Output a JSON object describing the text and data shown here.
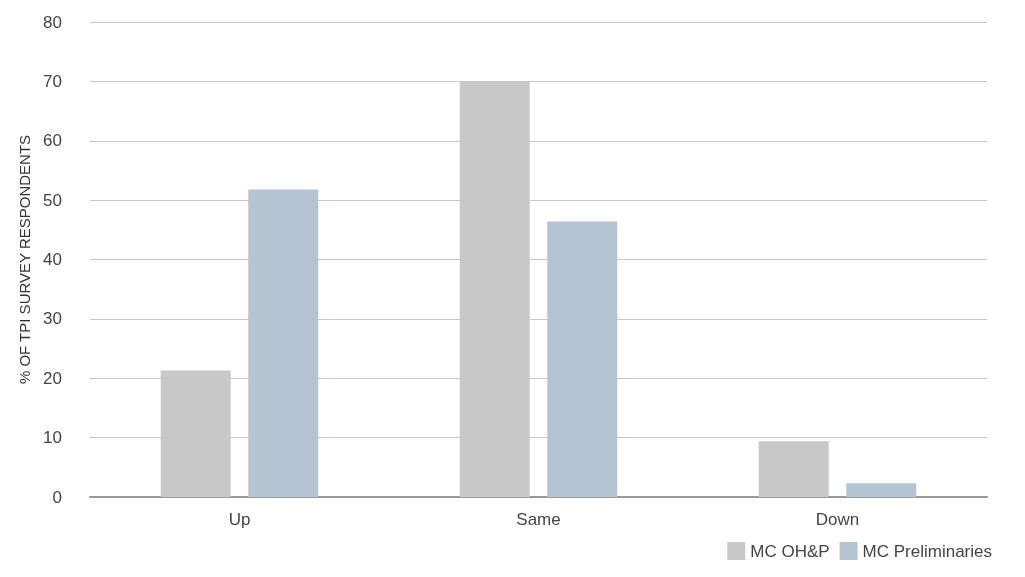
{
  "chart_data": {
    "type": "bar",
    "ylabel": "% OF TPI SURVEY RESPONDENTS",
    "categories": [
      "Up",
      "Same",
      "Down"
    ],
    "series": [
      {
        "name": "MC OH&P",
        "color": "#c8c8c8",
        "values": [
          21.3,
          69.9,
          9.4
        ]
      },
      {
        "name": "MC Preliminaries",
        "color": "#b4c4d3",
        "values": [
          51.8,
          46.4,
          2.3
        ]
      }
    ],
    "ylim": [
      0,
      80
    ],
    "yticks": [
      0,
      10,
      20,
      30,
      40,
      50,
      60,
      70,
      80
    ],
    "grid": "y",
    "legend": "bottom right"
  }
}
